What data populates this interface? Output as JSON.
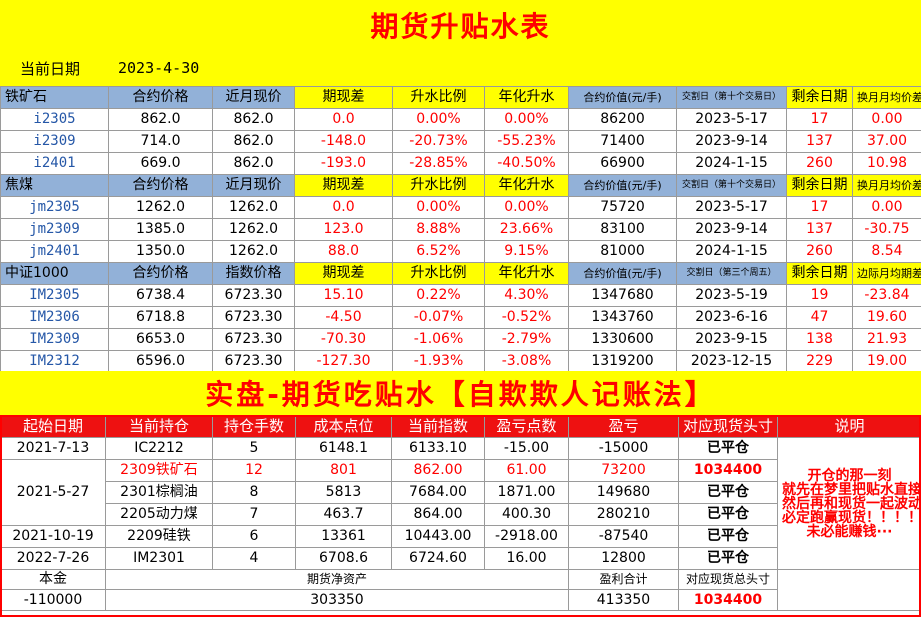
{
  "title": "期货升贴水表",
  "current_date_label": "当前日期",
  "current_date": "2023-4-30",
  "colors": {
    "header_blue": "#92b1d8",
    "yellow": "#ffff00",
    "red": "#ff0000",
    "code_blue": "#2557a7"
  },
  "sections": [
    {
      "header": [
        "铁矿石",
        "合约价格",
        "近月现价",
        "期现差",
        "升水比例",
        "年化升水",
        "合约价值(元/手)",
        "交割日（第十个交易日）",
        "剩余日期",
        "换月月均价差"
      ],
      "rows": [
        [
          "i2305",
          "862.0",
          "862.0",
          "0.0",
          "0.00%",
          "0.00%",
          "86200",
          "2023-5-17",
          "17",
          "0.00"
        ],
        [
          "i2309",
          "714.0",
          "862.0",
          "-148.0",
          "-20.73%",
          "-55.23%",
          "71400",
          "2023-9-14",
          "137",
          "37.00"
        ],
        [
          "i2401",
          "669.0",
          "862.0",
          "-193.0",
          "-28.85%",
          "-40.50%",
          "66900",
          "2024-1-15",
          "260",
          "10.98"
        ]
      ]
    },
    {
      "header": [
        "焦煤",
        "合约价格",
        "近月现价",
        "期现差",
        "升水比例",
        "年化升水",
        "合约价值(元/手)",
        "交割日（第十个交易日）",
        "剩余日期",
        "换月月均价差"
      ],
      "rows": [
        [
          "jm2305",
          "1262.0",
          "1262.0",
          "0.0",
          "0.00%",
          "0.00%",
          "75720",
          "2023-5-17",
          "17",
          "0.00"
        ],
        [
          "jm2309",
          "1385.0",
          "1262.0",
          "123.0",
          "8.88%",
          "23.66%",
          "83100",
          "2023-9-14",
          "137",
          "-30.75"
        ],
        [
          "jm2401",
          "1350.0",
          "1262.0",
          "88.0",
          "6.52%",
          "9.15%",
          "81000",
          "2024-1-15",
          "260",
          "8.54"
        ]
      ]
    },
    {
      "header": [
        "中证1000",
        "合约价格",
        "指数价格",
        "期现差",
        "升水比例",
        "年化升水",
        "合约价值(元/手)",
        "交割日（第三个周五）",
        "剩余日期",
        "边际月均期差"
      ],
      "rows": [
        [
          "IM2305",
          "6738.4",
          "6723.30",
          "15.10",
          "0.22%",
          "4.30%",
          "1347680",
          "2023-5-19",
          "19",
          "-23.84"
        ],
        [
          "IM2306",
          "6718.8",
          "6723.30",
          "-4.50",
          "-0.07%",
          "-0.52%",
          "1343760",
          "2023-6-16",
          "47",
          "19.60"
        ],
        [
          "IM2309",
          "6653.0",
          "6723.30",
          "-70.30",
          "-1.06%",
          "-2.79%",
          "1330600",
          "2023-9-15",
          "138",
          "21.93"
        ],
        [
          "IM2312",
          "6596.0",
          "6723.30",
          "-127.30",
          "-1.93%",
          "-3.08%",
          "1319200",
          "2023-12-15",
          "229",
          "19.00"
        ]
      ]
    }
  ],
  "banner": "实盘-期货吃贴水【自欺欺人记账法】",
  "positions": {
    "header": [
      "起始日期",
      "当前持仓",
      "持仓手数",
      "成本点位",
      "当前指数",
      "盈亏点数",
      "盈亏",
      "对应现货头寸",
      "说明"
    ],
    "rows": [
      [
        "2021-7-13",
        "IC2212",
        "5",
        "6148.1",
        "6133.10",
        "-15.00",
        "-15000",
        "已平仓"
      ],
      [
        "2021-5-27",
        "2309铁矿石",
        "12",
        "801",
        "862.00",
        "61.00",
        "73200",
        "1034400"
      ],
      [
        "",
        "2301棕榈油",
        "8",
        "5813",
        "7684.00",
        "1871.00",
        "149680",
        "已平仓"
      ],
      [
        "",
        "2205动力煤",
        "7",
        "463.7",
        "864.00",
        "400.30",
        "280210",
        "已平仓"
      ],
      [
        "2021-10-19",
        "2209硅铁",
        "6",
        "13361",
        "10443.00",
        "-2918.00",
        "-87540",
        "已平仓"
      ],
      [
        "2022-7-26",
        "IM2301",
        "4",
        "6708.6",
        "6724.60",
        "16.00",
        "12800",
        "已平仓"
      ]
    ],
    "note": [
      "开仓的那一刻",
      "就先在梦里把贴水直接吃了",
      "然后再和现货一起波动",
      "必定跑赢现货！！！！",
      "未必能赚钱···"
    ],
    "summary": {
      "principal_label": "本金",
      "net_assets_label": "期货净资产",
      "pnl_total_label": "盈利合计",
      "spot_total_label": "对应现货总头寸",
      "principal": "-110000",
      "net_assets": "303350",
      "pnl_total": "413350",
      "spot_total": "1034400"
    }
  }
}
